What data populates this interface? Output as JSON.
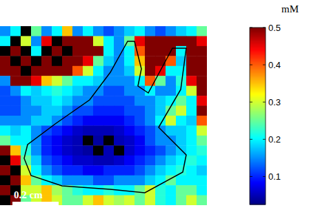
{
  "chart_data": {
    "type": "heatmap",
    "tick_labels": false,
    "annotations": [
      "0.2 cm"
    ],
    "colorbar": {
      "label": "mM",
      "range": [
        0.025,
        0.5
      ],
      "ticks": [
        0.1,
        0.2,
        0.3,
        0.4,
        0.5
      ]
    },
    "cells": [
      [
        0.15,
        0.2,
        null,
        0.25,
        0.15,
        0.2,
        0.35,
        0.15,
        0.2,
        0.15,
        0.12,
        0.15,
        0.18,
        0.2,
        0.15,
        0.12,
        0.15,
        0.18,
        0.2,
        0.25
      ],
      [
        0.2,
        null,
        0.3,
        0.15,
        0.45,
        null,
        0.5,
        0.5,
        0.5,
        0.3,
        0.2,
        0.15,
        0.25,
        0.45,
        0.5,
        0.5,
        0.5,
        0.5,
        0.5,
        0.45
      ],
      [
        null,
        0.5,
        null,
        0.2,
        null,
        0.5,
        null,
        0.5,
        0.5,
        0.5,
        0.2,
        0.15,
        0.2,
        0.4,
        0.5,
        0.5,
        0.5,
        0.2,
        0.5,
        0.5
      ],
      [
        0.5,
        null,
        0.5,
        null,
        0.5,
        null,
        0.5,
        0.5,
        0.45,
        0.25,
        0.18,
        0.15,
        0.2,
        0.35,
        0.5,
        0.5,
        0.4,
        0.18,
        0.5,
        0.5
      ],
      [
        0.5,
        0.5,
        null,
        0.5,
        0.5,
        0.5,
        0.5,
        0.4,
        0.3,
        0.2,
        0.15,
        0.15,
        0.18,
        0.3,
        0.5,
        0.45,
        0.2,
        0.2,
        0.5,
        0.5
      ],
      [
        0.15,
        0.5,
        0.5,
        0.45,
        0.35,
        0.3,
        0.25,
        0.2,
        0.2,
        0.18,
        0.15,
        0.15,
        0.15,
        0.2,
        0.4,
        0.25,
        0.15,
        0.22,
        0.45,
        0.5
      ],
      [
        0.12,
        0.15,
        0.2,
        0.18,
        0.2,
        0.22,
        0.2,
        0.18,
        0.15,
        0.15,
        0.12,
        0.12,
        0.15,
        0.15,
        0.2,
        0.15,
        0.15,
        0.2,
        0.3,
        0.5
      ],
      [
        0.12,
        0.12,
        0.15,
        0.18,
        0.18,
        0.2,
        0.18,
        0.15,
        0.15,
        0.12,
        0.12,
        0.12,
        0.12,
        0.15,
        0.15,
        0.18,
        0.2,
        0.25,
        0.2,
        0.45
      ],
      [
        0.12,
        0.12,
        0.15,
        0.15,
        0.18,
        0.18,
        0.15,
        0.12,
        0.12,
        0.1,
        0.1,
        0.1,
        0.12,
        0.12,
        0.15,
        0.18,
        0.25,
        0.3,
        0.2,
        0.5
      ],
      [
        0.15,
        0.15,
        0.15,
        0.18,
        0.18,
        0.15,
        0.12,
        0.1,
        0.08,
        0.08,
        0.08,
        0.08,
        0.1,
        0.12,
        0.15,
        0.2,
        0.3,
        0.2,
        0.18,
        0.4
      ],
      [
        0.2,
        0.18,
        0.2,
        0.15,
        0.12,
        0.1,
        0.08,
        0.06,
        0.05,
        0.05,
        0.05,
        0.06,
        0.08,
        0.1,
        0.12,
        0.15,
        0.18,
        0.18,
        0.2,
        0.3
      ],
      [
        0.25,
        0.2,
        0.2,
        0.15,
        0.1,
        0.08,
        0.06,
        0.05,
        null,
        0.04,
        null,
        0.05,
        0.06,
        0.08,
        0.12,
        0.15,
        0.15,
        0.18,
        0.2,
        0.25
      ],
      [
        0.5,
        0.35,
        0.22,
        0.15,
        0.1,
        0.08,
        0.06,
        0.05,
        0.04,
        null,
        0.05,
        null,
        0.06,
        0.08,
        0.1,
        0.12,
        0.15,
        0.18,
        0.2,
        0.22
      ],
      [
        null,
        0.45,
        0.25,
        0.18,
        0.12,
        0.1,
        0.08,
        0.06,
        0.06,
        0.05,
        0.05,
        0.06,
        0.08,
        0.1,
        0.12,
        0.15,
        0.18,
        0.2,
        0.22,
        0.2
      ],
      [
        0.5,
        null,
        0.3,
        0.2,
        0.15,
        0.12,
        0.1,
        0.1,
        0.08,
        0.08,
        0.1,
        0.1,
        0.1,
        0.12,
        0.15,
        0.18,
        0.2,
        0.22,
        0.2,
        0.18
      ],
      [
        null,
        0.5,
        0.35,
        0.25,
        0.2,
        0.18,
        0.15,
        0.15,
        0.15,
        0.12,
        0.12,
        0.15,
        0.15,
        0.15,
        0.18,
        0.2,
        0.25,
        0.2,
        0.2,
        0.2
      ],
      [
        0.5,
        null,
        0.3,
        0.3,
        0.35,
        0.28,
        0.25,
        0.22,
        0.2,
        0.2,
        0.22,
        0.2,
        0.2,
        0.25,
        0.3,
        0.22,
        0.2,
        0.25,
        0.25,
        0.2
      ],
      [
        null,
        0.5,
        0.25,
        0.3,
        0.35,
        0.3,
        0.25,
        0.25,
        0.3,
        0.35,
        0.3,
        0.28,
        0.3,
        0.25,
        0.3,
        0.22,
        0.2,
        0.25,
        0.3,
        0.25
      ]
    ]
  }
}
